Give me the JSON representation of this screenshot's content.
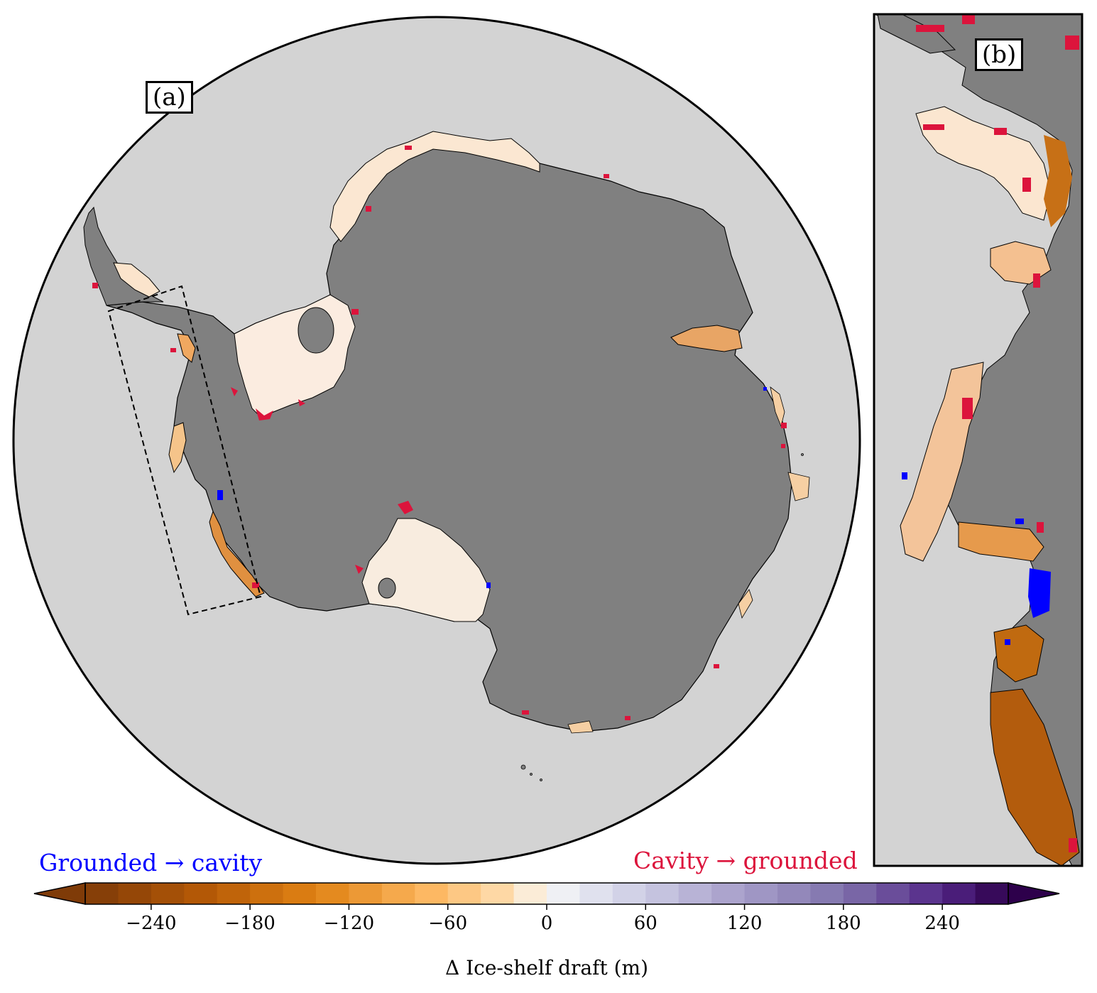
{
  "panel_a": {
    "label": "(a)"
  },
  "panel_b": {
    "label": "(b)"
  },
  "legend": {
    "grounded_to_cavity": "Grounded → cavity",
    "cavity_to_grounded": "Cavity → grounded",
    "grounded_to_cavity_color": "#0000ff",
    "cavity_to_grounded_color": "#dc143c"
  },
  "colorbar": {
    "title": "Δ Ice-shelf draft (m)",
    "colormap": "PuOr",
    "min": -280,
    "max": 280,
    "step": 20,
    "ticks": [
      {
        "value": -240,
        "label": "−240"
      },
      {
        "value": -180,
        "label": "−180"
      },
      {
        "value": -120,
        "label": "−120"
      },
      {
        "value": -60,
        "label": "−60"
      },
      {
        "value": 0,
        "label": "0"
      },
      {
        "value": 60,
        "label": "60"
      },
      {
        "value": 120,
        "label": "120"
      },
      {
        "value": 180,
        "label": "180"
      },
      {
        "value": 240,
        "label": "240"
      }
    ],
    "extend": "both"
  },
  "colors": {
    "ocean": "#d3d3d3",
    "grounded_ice": "#808080",
    "ice_shelf_light": "#fbe9d6",
    "ice_shelf_dark": "#b35806",
    "purple_end": "#2d004b"
  }
}
